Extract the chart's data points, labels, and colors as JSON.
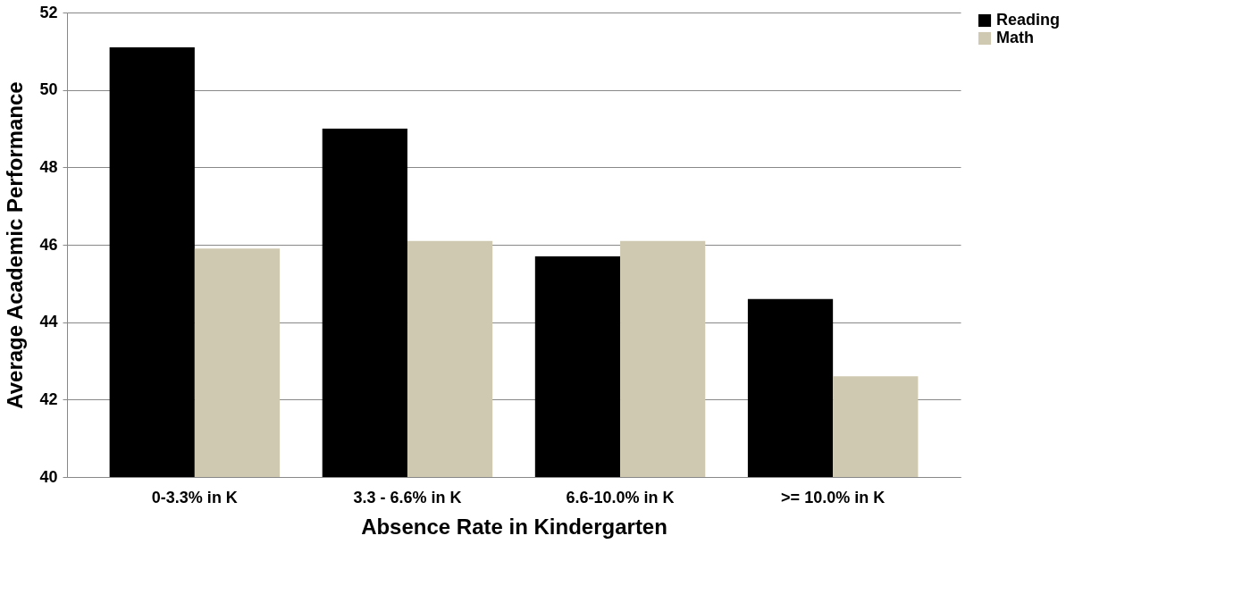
{
  "chart_data": {
    "type": "bar",
    "xlabel": "Absence Rate in Kindergarten",
    "ylabel": "Average Academic Performance",
    "categories": [
      "0-3.3% in K",
      "3.3 - 6.6% in K",
      "6.6-10.0% in K",
      ">= 10.0% in K"
    ],
    "series": [
      {
        "name": "Reading",
        "color": "#000000",
        "values": [
          51.1,
          49.0,
          45.7,
          44.6
        ]
      },
      {
        "name": "Math",
        "color": "#cfc9b1",
        "values": [
          45.9,
          46.1,
          46.1,
          42.6
        ]
      }
    ],
    "ylim": [
      40,
      52
    ],
    "yticks": [
      40,
      42,
      44,
      46,
      48,
      50,
      52
    ],
    "grid": "y",
    "legend": "right"
  }
}
